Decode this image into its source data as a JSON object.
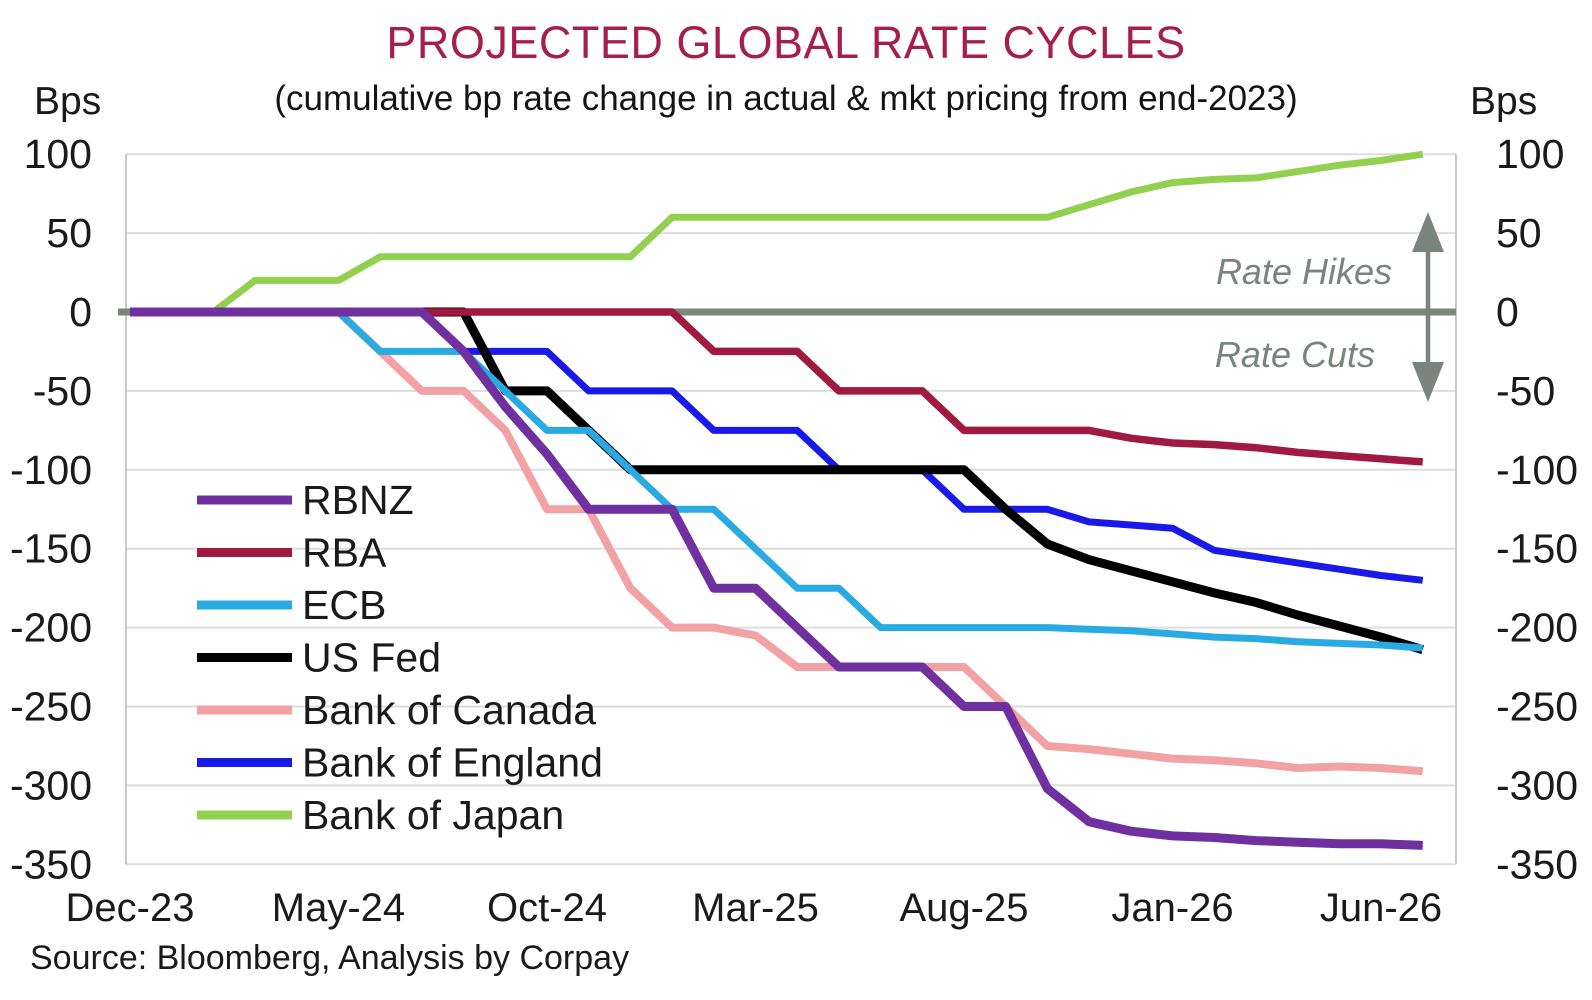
{
  "source": "Source: Bloomberg, Analysis by Corpay",
  "colors": {
    "title": "#A51E4F",
    "subtitle_text": "#141414",
    "axis_text": "#1A1A1A",
    "grid": "#DDDDDD",
    "frame": "#C9C9C9",
    "zero_line": "#7A857C",
    "annotation_gray": "#78847D",
    "background": "#FFFFFF"
  },
  "chart_data": {
    "type": "line",
    "title": "PROJECTED GLOBAL RATE CYCLES",
    "subtitle": "(cumulative bp rate change in actual & mkt pricing from end-2023)",
    "ylabel_left": "Bps",
    "ylabel_right": "Bps",
    "ylim": [
      -350,
      100
    ],
    "grid": "horizontal",
    "zero_line": true,
    "legend_position": "inside-left",
    "y_ticks": [
      100,
      50,
      0,
      -50,
      -100,
      -150,
      -200,
      -250,
      -300,
      -350
    ],
    "y_tick_labels": [
      "100",
      "50",
      "0",
      "-50",
      "-100",
      "-150",
      "-200",
      "-250",
      "-300",
      "-350"
    ],
    "x": [
      "Dec-23",
      "Jan-24",
      "Feb-24",
      "Mar-24",
      "Apr-24",
      "May-24",
      "Jun-24",
      "Jul-24",
      "Aug-24",
      "Sep-24",
      "Oct-24",
      "Nov-24",
      "Dec-24",
      "Jan-25",
      "Feb-25",
      "Mar-25",
      "Apr-25",
      "May-25",
      "Jun-25",
      "Jul-25",
      "Aug-25",
      "Sep-25",
      "Oct-25",
      "Nov-25",
      "Dec-25",
      "Jan-26",
      "Feb-26",
      "Mar-26",
      "Apr-26",
      "May-26",
      "Jun-26",
      "Jul-26"
    ],
    "x_tick_labels": [
      "Dec-23",
      "May-24",
      "Oct-24",
      "Mar-25",
      "Aug-25",
      "Jan-26",
      "Jun-26"
    ],
    "x_tick_indices": [
      0,
      5,
      10,
      15,
      20,
      25,
      30
    ],
    "annotations": {
      "rate_hikes": "Rate Hikes",
      "rate_cuts": "Rate Cuts"
    },
    "series": [
      {
        "name": "RBNZ",
        "color": "#7030A0",
        "width": 9,
        "values": [
          0,
          0,
          0,
          0,
          0,
          0,
          0,
          0,
          -25,
          -60,
          -90,
          -125,
          -125,
          -125,
          -175,
          -175,
          -200,
          -225,
          -225,
          -225,
          -250,
          -250,
          -302,
          -323,
          -329,
          -332,
          -333,
          -335,
          -336,
          -337,
          -337,
          -338
        ]
      },
      {
        "name": "RBA",
        "color": "#A01940",
        "width": 7.5,
        "values": [
          0,
          0,
          0,
          0,
          0,
          0,
          0,
          0,
          0,
          0,
          0,
          0,
          0,
          0,
          -25,
          -25,
          -25,
          -50,
          -50,
          -50,
          -75,
          -75,
          -75,
          -75,
          -80,
          -83,
          -84,
          -86,
          -89,
          -91,
          -93,
          -95
        ]
      },
      {
        "name": "ECB",
        "color": "#29ABE2",
        "width": 7,
        "values": [
          0,
          0,
          0,
          0,
          0,
          0,
          -25,
          -25,
          -25,
          -50,
          -75,
          -75,
          -100,
          -125,
          -125,
          -150,
          -175,
          -175,
          -200,
          -200,
          -200,
          -200,
          -200,
          -201,
          -202,
          -204,
          -206,
          -207,
          -209,
          -210,
          -211,
          -213
        ]
      },
      {
        "name": "US Fed",
        "color": "#000000",
        "width": 9,
        "values": [
          0,
          0,
          0,
          0,
          0,
          0,
          0,
          0,
          0,
          -50,
          -50,
          -75,
          -100,
          -100,
          -100,
          -100,
          -100,
          -100,
          -100,
          -100,
          -100,
          -125,
          -147,
          -157,
          -164,
          -171,
          -178,
          -184,
          -192,
          -199,
          -206,
          -214
        ]
      },
      {
        "name": "Bank of Canada",
        "color": "#F2A2A4",
        "width": 8,
        "values": [
          0,
          0,
          0,
          0,
          0,
          0,
          -25,
          -50,
          -50,
          -75,
          -125,
          -125,
          -175,
          -200,
          -200,
          -205,
          -225,
          -225,
          -225,
          -225,
          -225,
          -250,
          -275,
          -277,
          -280,
          -283,
          -284,
          -286,
          -289,
          -288,
          -289,
          -291
        ]
      },
      {
        "name": "Bank of England",
        "color": "#1A1AE8",
        "width": 7,
        "values": [
          0,
          0,
          0,
          0,
          0,
          0,
          0,
          0,
          -25,
          -25,
          -25,
          -50,
          -50,
          -50,
          -75,
          -75,
          -75,
          -100,
          -100,
          -100,
          -125,
          -125,
          -125,
          -133,
          -135,
          -137,
          -151,
          -155,
          -159,
          -163,
          -167,
          -170
        ]
      },
      {
        "name": "Bank of Japan",
        "color": "#92D050",
        "width": 7,
        "values": [
          0,
          0,
          0,
          20,
          20,
          20,
          35,
          35,
          35,
          35,
          35,
          35,
          35,
          60,
          60,
          60,
          60,
          60,
          60,
          60,
          60,
          60,
          60,
          68,
          76,
          82,
          84,
          85,
          89,
          93,
          96,
          100
        ]
      }
    ]
  }
}
